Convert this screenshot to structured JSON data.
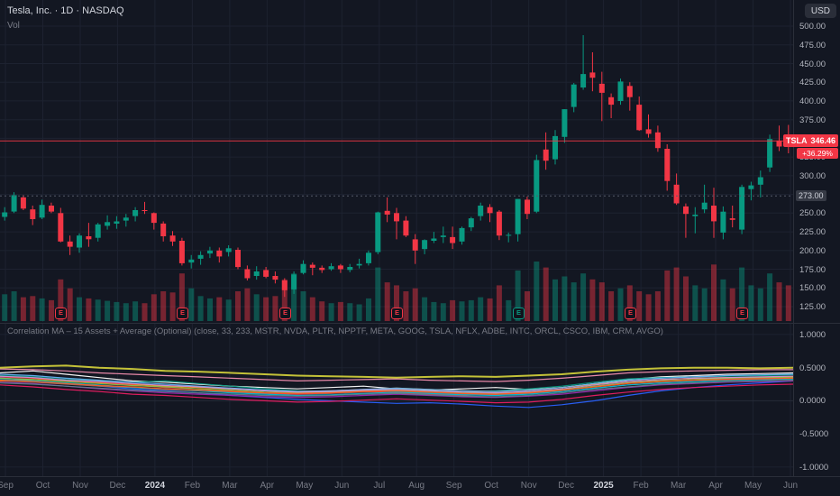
{
  "header": {
    "symbol_title": "Tesla, Inc. · 1D · NASDAQ",
    "vol_label": "Vol",
    "currency_button": "USD"
  },
  "price_label": {
    "ticker": "TSLA",
    "price": "346.46",
    "change": "+36.29%"
  },
  "level_tag": {
    "value": "273.00"
  },
  "indicator": {
    "legend": "Correlation MA – 15 Assets + Average (Optional) (close, 33, 233, MSTR, NVDA, PLTR, NPPTF, META, GOOG, TSLA, NFLX, ADBE, INTC, ORCL, CSCO, IBM, CRM, AVGO)"
  },
  "price_axis": {
    "labels": [
      "500.00",
      "475.00",
      "450.00",
      "425.00",
      "400.00",
      "375.00",
      "325.00",
      "300.00",
      "250.00",
      "225.00",
      "200.00",
      "175.00",
      "150.00",
      "125.00"
    ],
    "grid_levels": [
      500,
      475,
      450,
      425,
      400,
      375,
      350,
      325,
      300,
      275,
      250,
      225,
      200,
      175,
      150,
      125
    ]
  },
  "time_axis": [
    "Sep",
    "Oct",
    "Nov",
    "Dec",
    "2024",
    "Feb",
    "Mar",
    "Apr",
    "May",
    "Jun",
    "Jul",
    "Aug",
    "Sep",
    "Oct",
    "Nov",
    "Dec",
    "2025",
    "Feb",
    "Mar",
    "Apr",
    "May",
    "Jun"
  ],
  "colors": {
    "background": "#131722",
    "grid": "#1d2230",
    "up": "#089981",
    "down": "#f23645",
    "vol_up": "rgba(8,153,129,0.45)",
    "vol_down": "rgba(242,54,69,0.45)",
    "axis_text": "#b2b5be",
    "text_primary": "#d1d4dc",
    "text_secondary": "#787b86",
    "panel_border": "#2a2e39",
    "level_line": "#565b69"
  },
  "chart_data": [
    {
      "type": "candlestick",
      "symbol": "TSLA",
      "interval": "1D",
      "exchange": "NASDAQ",
      "title": "Tesla, Inc.",
      "ylim": [
        118,
        510
      ],
      "last_price": 346.46,
      "change_percent_label": "+36.29%",
      "x_span": [
        "Sep 2023",
        "Jun 2025"
      ],
      "candles_ohlc": [
        [
          245,
          258,
          240,
          251
        ],
        [
          252,
          278,
          250,
          274
        ],
        [
          271,
          274,
          254,
          256
        ],
        [
          255,
          260,
          234,
          242
        ],
        [
          244,
          268,
          242,
          261
        ],
        [
          260,
          264,
          250,
          252
        ],
        [
          250,
          257,
          211,
          212
        ],
        [
          212,
          220,
          194,
          205
        ],
        [
          204,
          223,
          197,
          220
        ],
        [
          219,
          237,
          205,
          215
        ],
        [
          217,
          237,
          212,
          235
        ],
        [
          233,
          247,
          228,
          238
        ],
        [
          236,
          246,
          229,
          239
        ],
        [
          240,
          249,
          232,
          244
        ],
        [
          246,
          258,
          239,
          254
        ],
        [
          254,
          265,
          249,
          253
        ],
        [
          250,
          251,
          228,
          237
        ],
        [
          236,
          239,
          212,
          219
        ],
        [
          220,
          226,
          206,
          212
        ],
        [
          213,
          217,
          180,
          183
        ],
        [
          184,
          194,
          176,
          188
        ],
        [
          189,
          199,
          181,
          194
        ],
        [
          196,
          205,
          190,
          200
        ],
        [
          200,
          204,
          184,
          192
        ],
        [
          198,
          207,
          192,
          203
        ],
        [
          201,
          204,
          175,
          178
        ],
        [
          175,
          180,
          160,
          163
        ],
        [
          166,
          179,
          161,
          172
        ],
        [
          174,
          178,
          163,
          165
        ],
        [
          166,
          172,
          156,
          161
        ],
        [
          160,
          163,
          138,
          147
        ],
        [
          148,
          172,
          142,
          168
        ],
        [
          170,
          187,
          168,
          182
        ],
        [
          181,
          184,
          167,
          177
        ],
        [
          177,
          180,
          170,
          174
        ],
        [
          175,
          183,
          173,
          179
        ],
        [
          180,
          182,
          170,
          175
        ],
        [
          174,
          182,
          171,
          178
        ],
        [
          180,
          189,
          176,
          182
        ],
        [
          183,
          200,
          180,
          197
        ],
        [
          198,
          252,
          195,
          251
        ],
        [
          253,
          271,
          238,
          248
        ],
        [
          250,
          257,
          215,
          239
        ],
        [
          240,
          246,
          218,
          220
        ],
        [
          215,
          222,
          182,
          200
        ],
        [
          202,
          215,
          195,
          214
        ],
        [
          213,
          225,
          210,
          216
        ],
        [
          218,
          232,
          210,
          220
        ],
        [
          218,
          232,
          202,
          210
        ],
        [
          212,
          232,
          208,
          230
        ],
        [
          231,
          245,
          226,
          243
        ],
        [
          246,
          264,
          240,
          260
        ],
        [
          258,
          262,
          238,
          250
        ],
        [
          252,
          254,
          214,
          220
        ],
        [
          221,
          224,
          211,
          221
        ],
        [
          222,
          269,
          212,
          269
        ],
        [
          268,
          272,
          242,
          249
        ],
        [
          252,
          328,
          250,
          321
        ],
        [
          335,
          358,
          308,
          320
        ],
        [
          322,
          361,
          315,
          353
        ],
        [
          352,
          389,
          344,
          389
        ],
        [
          392,
          424,
          385,
          422
        ],
        [
          418,
          488,
          415,
          436
        ],
        [
          438,
          465,
          413,
          431
        ],
        [
          423,
          439,
          373,
          411
        ],
        [
          405,
          410,
          377,
          395
        ],
        [
          400,
          430,
          395,
          426
        ],
        [
          420,
          425,
          387,
          405
        ],
        [
          395,
          406,
          360,
          361
        ],
        [
          362,
          382,
          351,
          356
        ],
        [
          358,
          367,
          332,
          337
        ],
        [
          336,
          342,
          280,
          293
        ],
        [
          288,
          303,
          261,
          263
        ],
        [
          259,
          263,
          217,
          249
        ],
        [
          246,
          258,
          223,
          248
        ],
        [
          255,
          288,
          250,
          264
        ],
        [
          260,
          284,
          217,
          239
        ],
        [
          224,
          259,
          215,
          252
        ],
        [
          243,
          260,
          231,
          241
        ],
        [
          228,
          288,
          222,
          285
        ],
        [
          282,
          292,
          267,
          287
        ],
        [
          288,
          307,
          271,
          298
        ],
        [
          311,
          355,
          305,
          349
        ],
        [
          347,
          367,
          333,
          339
        ],
        [
          351,
          368,
          330,
          346.46
        ]
      ],
      "volume_rel": [
        0.45,
        0.5,
        0.4,
        0.42,
        0.38,
        0.35,
        0.7,
        0.55,
        0.4,
        0.38,
        0.36,
        0.34,
        0.32,
        0.3,
        0.33,
        0.3,
        0.45,
        0.5,
        0.48,
        0.8,
        0.55,
        0.42,
        0.38,
        0.4,
        0.36,
        0.5,
        0.55,
        0.45,
        0.4,
        0.42,
        0.7,
        0.8,
        0.5,
        0.4,
        0.33,
        0.3,
        0.32,
        0.3,
        0.28,
        0.38,
        0.9,
        0.65,
        0.6,
        0.5,
        0.55,
        0.4,
        0.32,
        0.3,
        0.35,
        0.33,
        0.35,
        0.4,
        0.38,
        0.6,
        0.35,
        0.85,
        0.5,
        1.0,
        0.9,
        0.7,
        0.75,
        0.65,
        0.8,
        0.7,
        0.65,
        0.5,
        0.55,
        0.6,
        0.5,
        0.45,
        0.5,
        0.85,
        0.9,
        0.75,
        0.6,
        0.55,
        0.95,
        0.7,
        0.55,
        0.9,
        0.6,
        0.55,
        0.8,
        0.65,
        0.6
      ],
      "earnings_markers": [
        {
          "index": 6,
          "result": "miss"
        },
        {
          "index": 19,
          "result": "miss"
        },
        {
          "index": 30,
          "result": "miss"
        },
        {
          "index": 42,
          "result": "miss"
        },
        {
          "index": 55,
          "result": "beat"
        },
        {
          "index": 67,
          "result": "miss"
        },
        {
          "index": 79,
          "result": "miss"
        }
      ]
    },
    {
      "type": "line",
      "title": "Correlation MA – 15 Assets + Average (Optional)",
      "ylim": [
        -1,
        1
      ],
      "y_ticks": [
        1,
        0.5,
        0,
        -0.5,
        -1
      ],
      "series": [
        {
          "name": "MSTR",
          "color": "#ffffff",
          "values": [
            0.42,
            0.45,
            0.4,
            0.35,
            0.3,
            0.28,
            0.25,
            0.22,
            0.2,
            0.18,
            0.2,
            0.22,
            0.18,
            0.16,
            0.18,
            0.2,
            0.17,
            0.2,
            0.26,
            0.32,
            0.36,
            0.38,
            0.4,
            0.41,
            0.42
          ]
        },
        {
          "name": "NVDA",
          "color": "#089981",
          "values": [
            0.38,
            0.36,
            0.32,
            0.3,
            0.28,
            0.3,
            0.26,
            0.22,
            0.18,
            0.15,
            0.14,
            0.16,
            0.18,
            0.15,
            0.13,
            0.15,
            0.18,
            0.22,
            0.28,
            0.33,
            0.35,
            0.36,
            0.37,
            0.38,
            0.39
          ]
        },
        {
          "name": "PLTR",
          "color": "#2962ff",
          "values": [
            0.35,
            0.3,
            0.26,
            0.22,
            0.18,
            0.15,
            0.12,
            0.08,
            0.05,
            0.02,
            0.0,
            -0.02,
            -0.04,
            -0.03,
            -0.05,
            -0.08,
            -0.1,
            -0.06,
            0.0,
            0.08,
            0.15,
            0.2,
            0.24,
            0.27,
            0.3
          ]
        },
        {
          "name": "NPPTF",
          "color": "#8d6e63",
          "values": [
            0.3,
            0.28,
            0.25,
            0.22,
            0.2,
            0.17,
            0.15,
            0.13,
            0.11,
            0.1,
            0.11,
            0.13,
            0.14,
            0.12,
            0.1,
            0.09,
            0.11,
            0.14,
            0.19,
            0.24,
            0.27,
            0.29,
            0.31,
            0.32,
            0.33
          ]
        },
        {
          "name": "META",
          "color": "#ff9800",
          "values": [
            0.3,
            0.32,
            0.3,
            0.27,
            0.25,
            0.22,
            0.2,
            0.18,
            0.15,
            0.14,
            0.15,
            0.17,
            0.19,
            0.17,
            0.15,
            0.14,
            0.16,
            0.2,
            0.25,
            0.29,
            0.32,
            0.34,
            0.35,
            0.35,
            0.36
          ]
        },
        {
          "name": "GOOG",
          "color": "#f23645",
          "values": [
            0.36,
            0.34,
            0.3,
            0.28,
            0.24,
            0.2,
            0.18,
            0.15,
            0.12,
            0.1,
            0.12,
            0.14,
            0.12,
            0.1,
            0.08,
            0.1,
            0.12,
            0.16,
            0.22,
            0.27,
            0.3,
            0.32,
            0.33,
            0.34,
            0.34
          ]
        },
        {
          "name": "TSLA",
          "color": "#f48fb1",
          "values": [
            0.48,
            0.47,
            0.45,
            0.42,
            0.4,
            0.38,
            0.36,
            0.34,
            0.32,
            0.3,
            0.31,
            0.32,
            0.33,
            0.31,
            0.3,
            0.29,
            0.31,
            0.34,
            0.38,
            0.42,
            0.44,
            0.45,
            0.46,
            0.47,
            0.47
          ]
        },
        {
          "name": "NFLX",
          "color": "#9c27b0",
          "values": [
            0.28,
            0.26,
            0.22,
            0.18,
            0.15,
            0.12,
            0.1,
            0.08,
            0.06,
            0.05,
            0.06,
            0.08,
            0.1,
            0.08,
            0.06,
            0.05,
            0.07,
            0.1,
            0.15,
            0.2,
            0.24,
            0.26,
            0.28,
            0.29,
            0.3
          ]
        },
        {
          "name": "ADBE",
          "color": "#00bcd4",
          "values": [
            0.32,
            0.3,
            0.27,
            0.24,
            0.2,
            0.18,
            0.15,
            0.12,
            0.1,
            0.08,
            0.09,
            0.11,
            0.13,
            0.11,
            0.09,
            0.08,
            0.1,
            0.14,
            0.19,
            0.24,
            0.27,
            0.29,
            0.31,
            0.32,
            0.33
          ]
        },
        {
          "name": "INTC",
          "color": "#e91e63",
          "values": [
            0.24,
            0.21,
            0.17,
            0.14,
            0.1,
            0.08,
            0.05,
            0.02,
            0.0,
            -0.02,
            -0.01,
            0.01,
            0.03,
            0.01,
            -0.01,
            -0.03,
            -0.02,
            0.02,
            0.08,
            0.13,
            0.17,
            0.2,
            0.22,
            0.24,
            0.25
          ]
        },
        {
          "name": "ORCL",
          "color": "#64b5f6",
          "values": [
            0.4,
            0.38,
            0.34,
            0.31,
            0.28,
            0.25,
            0.22,
            0.19,
            0.16,
            0.14,
            0.15,
            0.17,
            0.19,
            0.17,
            0.15,
            0.14,
            0.16,
            0.2,
            0.26,
            0.31,
            0.34,
            0.36,
            0.38,
            0.39,
            0.4
          ]
        },
        {
          "name": "CSCO",
          "color": "#8bc34a",
          "values": [
            0.34,
            0.32,
            0.29,
            0.26,
            0.23,
            0.21,
            0.18,
            0.16,
            0.13,
            0.12,
            0.13,
            0.15,
            0.16,
            0.14,
            0.12,
            0.11,
            0.13,
            0.17,
            0.22,
            0.27,
            0.3,
            0.32,
            0.34,
            0.35,
            0.35
          ]
        },
        {
          "name": "IBM",
          "color": "#607d8b",
          "values": [
            0.27,
            0.25,
            0.22,
            0.19,
            0.16,
            0.14,
            0.12,
            0.1,
            0.08,
            0.07,
            0.08,
            0.1,
            0.11,
            0.09,
            0.07,
            0.06,
            0.08,
            0.12,
            0.17,
            0.21,
            0.25,
            0.27,
            0.29,
            0.3,
            0.31
          ]
        },
        {
          "name": "CRM",
          "color": "#ff5722",
          "values": [
            0.31,
            0.29,
            0.26,
            0.23,
            0.21,
            0.18,
            0.16,
            0.14,
            0.12,
            0.11,
            0.12,
            0.14,
            0.15,
            0.13,
            0.11,
            0.1,
            0.12,
            0.16,
            0.21,
            0.26,
            0.29,
            0.31,
            0.32,
            0.33,
            0.34
          ]
        },
        {
          "name": "AVGO",
          "color": "#ce93d8",
          "values": [
            0.37,
            0.35,
            0.31,
            0.29,
            0.26,
            0.23,
            0.21,
            0.18,
            0.15,
            0.13,
            0.14,
            0.16,
            0.17,
            0.15,
            0.13,
            0.12,
            0.14,
            0.18,
            0.24,
            0.29,
            0.32,
            0.34,
            0.35,
            0.36,
            0.37
          ]
        },
        {
          "name": "Average",
          "color": "#cdcb3a",
          "width": 2,
          "values": [
            0.5,
            0.52,
            0.53,
            0.5,
            0.48,
            0.45,
            0.44,
            0.42,
            0.4,
            0.38,
            0.37,
            0.36,
            0.35,
            0.36,
            0.37,
            0.36,
            0.38,
            0.4,
            0.44,
            0.47,
            0.49,
            0.5,
            0.5,
            0.49,
            0.5
          ]
        }
      ]
    }
  ]
}
